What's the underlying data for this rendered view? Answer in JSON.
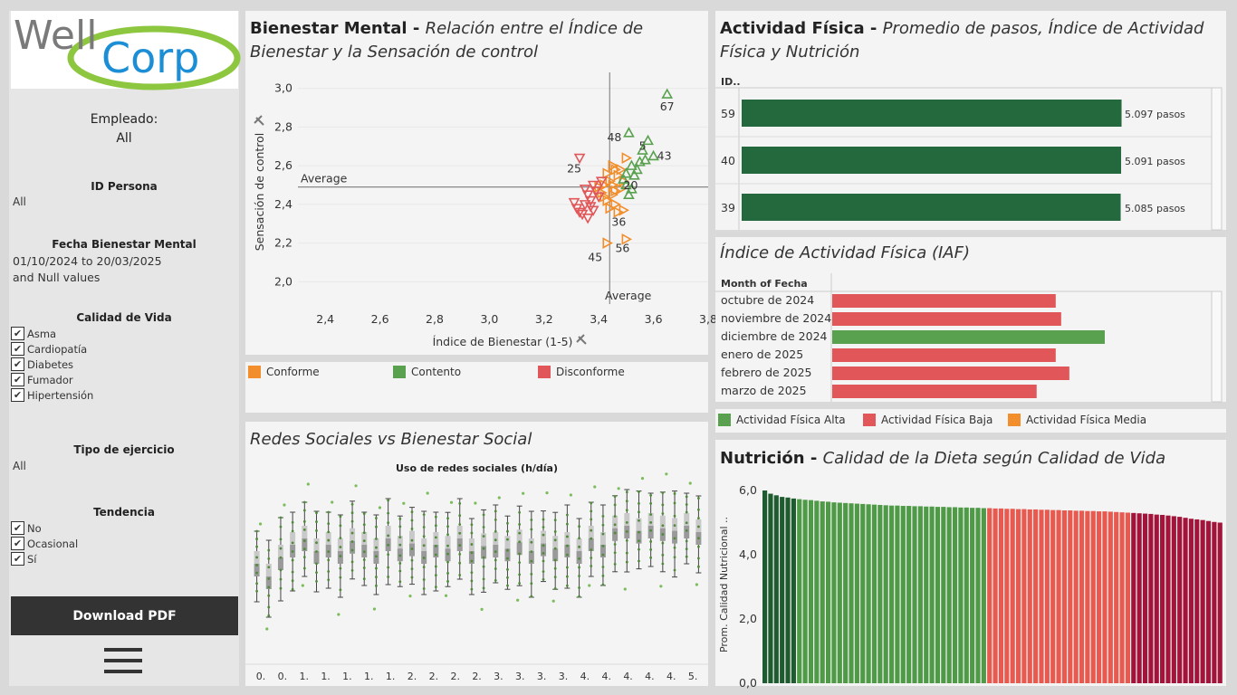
{
  "logo": {
    "text_well": "Well",
    "text_corp": "Corp"
  },
  "sidebar": {
    "empleado_label": "Empleado:",
    "empleado_value": "All",
    "id_persona_title": "ID Persona",
    "id_persona_value": "All",
    "fecha_title": "Fecha Bienestar Mental",
    "fecha_range": "01/10/2024 to 20/03/2025",
    "fecha_null": "and Null values",
    "calidad_title": "Calidad de Vida",
    "calidad_items": [
      "Asma",
      "Cardiopatía",
      "Diabetes",
      "Fumador",
      "Hipertensión"
    ],
    "tipo_title": "Tipo de ejercicio",
    "tipo_value": "All",
    "tendencia_title": "Tendencia",
    "tendencia_items": [
      "No",
      "Ocasional",
      "Sí"
    ],
    "check_mark": "✔",
    "download_label": "Download PDF",
    "menu_icon": "hamburger-icon"
  },
  "mental": {
    "title_bold": "Bienestar Mental - ",
    "title_italic": "Relación entre el Índice de Bienestar y la Sensación de control",
    "average_label": "Average",
    "legend": [
      {
        "label": "Conforme",
        "color": "#f28e2b"
      },
      {
        "label": "Contento",
        "color": "#59a14f"
      },
      {
        "label": "Disconforme",
        "color": "#e15759"
      }
    ]
  },
  "redes": {
    "title": "Redes Sociales vs Bienestar Social",
    "subtitle": "Uso de redes sociales (h/día)",
    "x_ticks": [
      "0.",
      "0.",
      "1.",
      "1.",
      "1.",
      "1.",
      "1.",
      "2.",
      "2.",
      "2.",
      "2.",
      "3.",
      "3.",
      "3.",
      "3.",
      "4.",
      "4.",
      "4.",
      "4.",
      "4.",
      "5."
    ]
  },
  "actividad": {
    "title_bold": "Actividad Física - ",
    "title_italic": "Promedio de pasos, Índice de Actividad Física y Nutrición",
    "col_header": "ID..",
    "rows": [
      {
        "id": "59",
        "label": "5.097 pasos",
        "value": 5097
      },
      {
        "id": "40",
        "label": "5.091 pasos",
        "value": 5091
      },
      {
        "id": "39",
        "label": "5.085 pasos",
        "value": 5085
      }
    ],
    "bar_color": "#24693d"
  },
  "iaf": {
    "title": "Índice de Actividad Física (IAF)",
    "col_header": "Month of Fecha",
    "rows": [
      {
        "month": "octubre de 2024",
        "value": 0.82,
        "level": "Baja"
      },
      {
        "month": "noviembre de 2024",
        "value": 0.84,
        "level": "Baja"
      },
      {
        "month": "diciembre de 2024",
        "value": 1.0,
        "level": "Alta"
      },
      {
        "month": "enero de 2025",
        "value": 0.82,
        "level": "Baja"
      },
      {
        "month": "febrero de 2025",
        "value": 0.87,
        "level": "Baja"
      },
      {
        "month": "marzo de 2025",
        "value": 0.75,
        "level": "Baja"
      }
    ],
    "legend": [
      {
        "label": "Actividad Física Alta",
        "color": "#59a14f"
      },
      {
        "label": "Actividad Física Baja",
        "color": "#e15759"
      },
      {
        "label": "Actividad Física Media",
        "color": "#f28e2b"
      }
    ]
  },
  "nutricion": {
    "title_bold": "Nutrición - ",
    "title_italic": "Calidad de la Dieta según Calidad de Vida",
    "ylabel": "Prom. Calidad Nutricional ..",
    "yticks": [
      "6,0",
      "4,0",
      "2,0",
      "0,0"
    ]
  },
  "chart_data": [
    {
      "type": "scatter",
      "title": "Bienestar Mental - Relación entre el Índice de Bienestar y la Sensación de control",
      "xlabel": "Índice de Bienestar (1-5)",
      "ylabel": "Sensación de control",
      "xlim": [
        2.3,
        3.8
      ],
      "ylim": [
        1.95,
        3.05
      ],
      "xticks": [
        "2,4",
        "2,6",
        "2,8",
        "3,0",
        "3,2",
        "3,4",
        "3,6",
        "3,8"
      ],
      "yticks": [
        "2,0",
        "2,2",
        "2,4",
        "2,6",
        "2,8",
        "3,0"
      ],
      "average_x": 3.44,
      "average_y": 2.49,
      "labeled_points": [
        {
          "id": "67",
          "x": 3.65,
          "y": 2.97,
          "group": "Contento"
        },
        {
          "id": "48",
          "x": 3.51,
          "y": 2.77,
          "group": "Contento"
        },
        {
          "id": "5",
          "x": 3.58,
          "y": 2.73,
          "group": "Contento"
        },
        {
          "id": "43",
          "x": 3.6,
          "y": 2.65,
          "group": "Contento"
        },
        {
          "id": "25",
          "x": 3.33,
          "y": 2.64,
          "group": "Disconforme"
        },
        {
          "id": "20",
          "x": 3.53,
          "y": 2.55,
          "group": "Contento"
        },
        {
          "id": "36",
          "x": 3.49,
          "y": 2.37,
          "group": "Conforme"
        },
        {
          "id": "56",
          "x": 3.5,
          "y": 2.22,
          "group": "Conforme"
        },
        {
          "id": "45",
          "x": 3.43,
          "y": 2.2,
          "group": "Conforme"
        }
      ],
      "series": [
        {
          "name": "Conforme",
          "points": [
            [
              3.42,
              2.5
            ],
            [
              3.44,
              2.52
            ],
            [
              3.46,
              2.58
            ],
            [
              3.45,
              2.45
            ],
            [
              3.43,
              2.42
            ],
            [
              3.47,
              2.55
            ],
            [
              3.48,
              2.48
            ],
            [
              3.41,
              2.46
            ],
            [
              3.45,
              2.6
            ],
            [
              3.46,
              2.4
            ],
            [
              3.44,
              2.38
            ],
            [
              3.5,
              2.64
            ],
            [
              3.49,
              2.52
            ],
            [
              3.43,
              2.56
            ],
            [
              3.4,
              2.49
            ],
            [
              3.47,
              2.36
            ],
            [
              3.45,
              2.5
            ],
            [
              3.42,
              2.44
            ],
            [
              3.48,
              2.58
            ],
            [
              3.46,
              2.47
            ],
            [
              3.49,
              2.37
            ],
            [
              3.5,
              2.22
            ],
            [
              3.43,
              2.2
            ]
          ]
        },
        {
          "name": "Contento",
          "points": [
            [
              3.65,
              2.97
            ],
            [
              3.51,
              2.77
            ],
            [
              3.58,
              2.73
            ],
            [
              3.6,
              2.65
            ],
            [
              3.55,
              2.62
            ],
            [
              3.56,
              2.68
            ],
            [
              3.53,
              2.55
            ],
            [
              3.52,
              2.6
            ],
            [
              3.5,
              2.5
            ],
            [
              3.54,
              2.58
            ],
            [
              3.51,
              2.45
            ],
            [
              3.57,
              2.63
            ],
            [
              3.5,
              2.56
            ],
            [
              3.52,
              2.48
            ],
            [
              3.49,
              2.53
            ]
          ]
        },
        {
          "name": "Disconforme",
          "points": [
            [
              3.33,
              2.64
            ],
            [
              3.38,
              2.5
            ],
            [
              3.36,
              2.45
            ],
            [
              3.35,
              2.4
            ],
            [
              3.32,
              2.38
            ],
            [
              3.34,
              2.35
            ],
            [
              3.37,
              2.42
            ],
            [
              3.39,
              2.47
            ],
            [
              3.31,
              2.41
            ],
            [
              3.36,
              2.33
            ],
            [
              3.4,
              2.44
            ],
            [
              3.38,
              2.37
            ],
            [
              3.35,
              2.48
            ],
            [
              3.33,
              2.36
            ],
            [
              3.41,
              2.52
            ],
            [
              3.37,
              2.39
            ]
          ]
        }
      ]
    },
    {
      "type": "box",
      "title": "Redes Sociales vs Bienestar Social",
      "xlabel": "Uso de redes sociales (h/día)",
      "box_count": 38,
      "median_levels": [
        0.4,
        0.3,
        0.45,
        0.55,
        0.6,
        0.5,
        0.55,
        0.5,
        0.58,
        0.55,
        0.5,
        0.6,
        0.52,
        0.56,
        0.5,
        0.55,
        0.52,
        0.6,
        0.5,
        0.54,
        0.55,
        0.52,
        0.57,
        0.5,
        0.56,
        0.52,
        0.55,
        0.5,
        0.6,
        0.55,
        0.68,
        0.7,
        0.66,
        0.7,
        0.68,
        0.66,
        0.7,
        0.65
      ]
    },
    {
      "type": "bar",
      "title": "Actividad Física - Promedio de pasos",
      "categories": [
        "59",
        "40",
        "39"
      ],
      "values": [
        5097,
        5091,
        5085
      ]
    },
    {
      "type": "bar",
      "title": "Índice de Actividad Física (IAF)",
      "categories": [
        "octubre de 2024",
        "noviembre de 2024",
        "diciembre de 2024",
        "enero de 2025",
        "febrero de 2025",
        "marzo de 2025"
      ],
      "values": [
        0.82,
        0.84,
        1.0,
        0.82,
        0.87,
        0.75
      ]
    },
    {
      "type": "bar",
      "title": "Nutrición - Calidad de la Dieta según Calidad de Vida",
      "ylabel": "Prom. Calidad Nutricional ..",
      "ylim": [
        0,
        6
      ],
      "values": [
        6.0,
        5.9,
        5.85,
        5.8,
        5.78,
        5.75,
        5.73,
        5.71,
        5.7,
        5.68,
        5.66,
        5.65,
        5.63,
        5.62,
        5.61,
        5.6,
        5.59,
        5.58,
        5.57,
        5.56,
        5.55,
        5.54,
        5.53,
        5.53,
        5.52,
        5.52,
        5.51,
        5.51,
        5.5,
        5.5,
        5.49,
        5.49,
        5.48,
        5.48,
        5.47,
        5.47,
        5.46,
        5.46,
        5.45,
        5.45,
        5.44,
        5.44,
        5.43,
        5.43,
        5.42,
        5.42,
        5.41,
        5.41,
        5.4,
        5.4,
        5.39,
        5.39,
        5.38,
        5.38,
        5.37,
        5.37,
        5.36,
        5.36,
        5.35,
        5.35,
        5.34,
        5.33,
        5.32,
        5.31,
        5.3,
        5.29,
        5.28,
        5.27,
        5.25,
        5.24,
        5.22,
        5.2,
        5.18,
        5.15,
        5.12,
        5.1,
        5.08,
        5.05,
        5.02,
        5.0
      ],
      "color_groups": [
        "#1e5c2f",
        "#4f9a46",
        "#e85a4f",
        "#a3143a"
      ]
    }
  ]
}
